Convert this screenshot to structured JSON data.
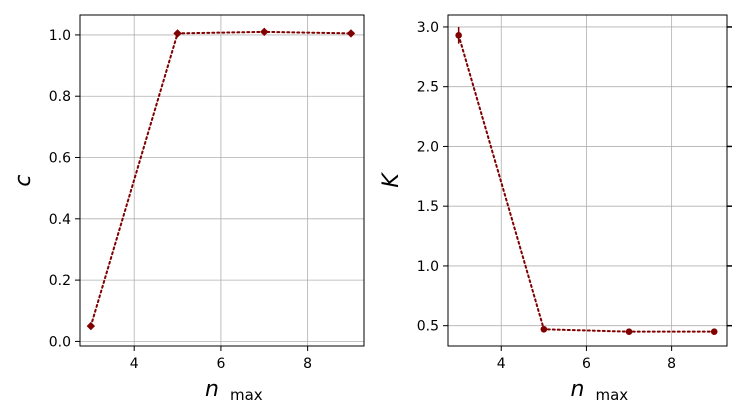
{
  "chart_data": [
    {
      "type": "line",
      "title": "",
      "xlabel": "n",
      "xlabel_sub": "max",
      "ylabel": "c",
      "xlim": [
        2.75,
        9.3
      ],
      "ylim": [
        -0.015,
        1.065
      ],
      "xticks": [
        4,
        6,
        8
      ],
      "yticks": [
        0.0,
        0.2,
        0.4,
        0.6,
        0.8,
        1.0
      ],
      "xtick_labels": [
        "4",
        "6",
        "8"
      ],
      "ytick_labels": [
        "0.0",
        "0.2",
        "0.4",
        "0.6",
        "0.8",
        "1.0"
      ],
      "grid": true,
      "series": [
        {
          "color": "#800000",
          "linestyle": "dotted",
          "marker": "diamond",
          "x": [
            3,
            5,
            7,
            9
          ],
          "y": [
            0.05,
            1.005,
            1.01,
            1.005
          ]
        }
      ]
    },
    {
      "type": "line",
      "title": "",
      "xlabel": "n",
      "xlabel_sub": "max",
      "ylabel": "K",
      "xlim": [
        2.75,
        9.3
      ],
      "ylim": [
        0.33,
        3.1
      ],
      "xticks": [
        4,
        6,
        8
      ],
      "yticks": [
        0.5,
        1.0,
        1.5,
        2.0,
        2.5,
        3.0
      ],
      "xtick_labels": [
        "4",
        "6",
        "8"
      ],
      "ytick_labels": [
        "0.5",
        "1.0",
        "1.5",
        "2.0",
        "2.5",
        "3.0"
      ],
      "grid": true,
      "right_ticks": true,
      "series": [
        {
          "color": "#800000",
          "linestyle": "dotted",
          "marker": "circle",
          "x": [
            3,
            5,
            7,
            9
          ],
          "y": [
            2.93,
            0.47,
            0.45,
            0.45
          ],
          "yerr": [
            0.07,
            0.015,
            0.015,
            0.015
          ]
        }
      ]
    }
  ]
}
